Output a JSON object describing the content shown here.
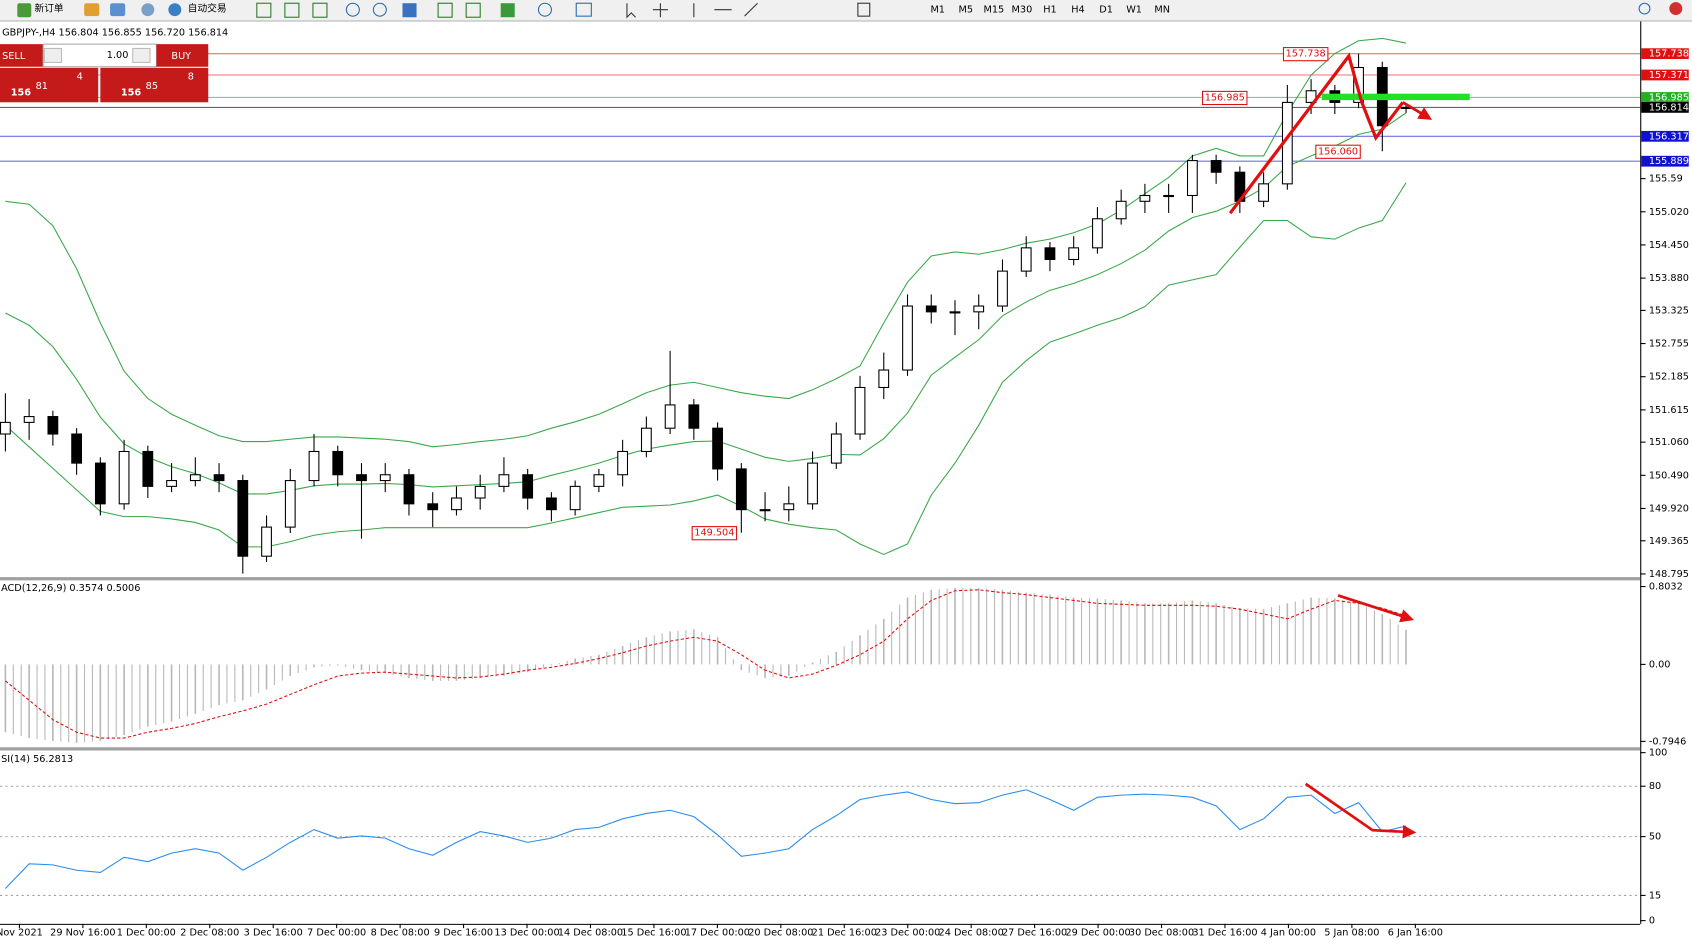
{
  "toolbar": {
    "new_order": "新订单",
    "auto_trading": "自动交易",
    "timeframes": [
      "M1",
      "M5",
      "M15",
      "M30",
      "H1",
      "H4",
      "D1",
      "W1",
      "MN"
    ]
  },
  "trade_panel": {
    "sell": "SELL",
    "buy": "BUY",
    "lots": "1.00",
    "sell_price": {
      "prefix": "156",
      "big": "81",
      "small": "4"
    },
    "buy_price": {
      "prefix": "156",
      "big": "85",
      "small": "8"
    }
  },
  "time_axis": {
    "labels": [
      "Nov 2021",
      "29 Nov 16:00",
      "1 Dec 00:00",
      "2 Dec 08:00",
      "3 Dec 16:00",
      "7 Dec 00:00",
      "8 Dec 08:00",
      "9 Dec 16:00",
      "13 Dec 00:00",
      "14 Dec 08:00",
      "15 Dec 16:00",
      "17 Dec 00:00",
      "20 Dec 08:00",
      "21 Dec 16:00",
      "23 Dec 00:00",
      "24 Dec 08:00",
      "27 Dec 16:00",
      "29 Dec 00:00",
      "30 Dec 08:00",
      "31 Dec 16:00",
      "4 Jan 00:00",
      "5 Jan 08:00",
      "6 Jan 16:00"
    ]
  },
  "chart_data": [
    {
      "type": "candlestick",
      "header": "GBPJPY-,H4  156.804 156.855 156.720 156.814",
      "ylim": [
        148.74,
        158.29
      ],
      "yticks": [
        155.59,
        {
          "value": 155.02,
          "label": "155.020"
        },
        {
          "value": 154.45,
          "label": "154.450"
        },
        {
          "value": 153.88,
          "label": "153.880"
        },
        153.325,
        152.755,
        152.185,
        151.615,
        {
          "value": 151.06,
          "label": "151.060"
        },
        {
          "value": 150.49,
          "label": "150.490"
        },
        {
          "value": 149.92,
          "label": "149.920"
        },
        149.365,
        148.795
      ],
      "open": [
        151.2,
        151.4,
        151.5,
        151.2,
        150.7,
        150.0,
        150.9,
        150.3,
        150.4,
        150.5,
        150.4,
        149.1,
        149.6,
        150.4,
        150.9,
        150.5,
        150.4,
        150.5,
        150.0,
        149.9,
        150.1,
        150.3,
        150.5,
        150.1,
        149.9,
        150.3,
        150.5,
        150.9,
        151.3,
        151.7,
        151.3,
        150.6,
        149.9,
        149.9,
        150.0,
        150.7,
        151.2,
        152.0,
        152.3,
        153.4,
        153.3,
        153.3,
        153.4,
        154.0,
        154.4,
        154.2,
        154.4,
        154.9,
        155.2,
        155.3,
        155.3,
        155.9,
        155.7,
        155.2,
        155.5,
        156.9,
        157.1,
        156.9,
        157.5,
        156.804
      ],
      "high": [
        151.9,
        151.8,
        151.6,
        151.3,
        150.8,
        151.1,
        151.0,
        150.7,
        150.8,
        150.7,
        150.5,
        149.8,
        150.6,
        151.2,
        151.0,
        150.7,
        150.7,
        150.6,
        150.2,
        150.3,
        150.5,
        150.8,
        150.6,
        150.2,
        150.4,
        150.6,
        151.1,
        151.5,
        152.63,
        151.8,
        151.4,
        150.7,
        150.2,
        150.3,
        150.9,
        151.4,
        152.2,
        152.6,
        153.6,
        153.6,
        153.5,
        153.6,
        154.2,
        154.6,
        154.5,
        154.6,
        155.1,
        155.4,
        155.5,
        155.5,
        156.0,
        156.0,
        155.8,
        155.7,
        157.2,
        157.3,
        157.2,
        157.738,
        157.6,
        156.855
      ],
      "low": [
        150.9,
        151.1,
        151.0,
        150.5,
        149.8,
        149.9,
        150.1,
        150.2,
        150.3,
        150.2,
        148.8,
        149.0,
        149.5,
        150.3,
        150.3,
        149.4,
        150.2,
        149.8,
        149.6,
        149.8,
        149.9,
        150.2,
        149.9,
        149.7,
        149.8,
        150.2,
        150.3,
        150.8,
        151.2,
        151.1,
        150.4,
        149.504,
        149.7,
        149.7,
        149.9,
        150.6,
        151.1,
        151.8,
        152.2,
        153.1,
        152.9,
        153.0,
        153.3,
        153.9,
        154.0,
        154.1,
        154.3,
        154.8,
        155.0,
        155.0,
        155.0,
        155.5,
        155.0,
        155.1,
        155.4,
        156.7,
        156.7,
        156.8,
        156.06,
        156.72
      ],
      "close": [
        151.4,
        151.5,
        151.2,
        150.7,
        150.0,
        150.9,
        150.3,
        150.4,
        150.5,
        150.4,
        149.1,
        149.6,
        150.4,
        150.9,
        150.5,
        150.4,
        150.5,
        150.0,
        149.9,
        150.1,
        150.3,
        150.5,
        150.1,
        149.9,
        150.3,
        150.5,
        150.9,
        151.3,
        151.7,
        151.3,
        150.6,
        149.9,
        149.9,
        150.0,
        150.7,
        151.2,
        152.0,
        152.3,
        153.4,
        153.3,
        153.3,
        153.4,
        154.0,
        154.4,
        154.2,
        154.4,
        154.9,
        155.2,
        155.3,
        155.3,
        155.9,
        155.7,
        155.2,
        155.5,
        156.9,
        157.1,
        156.9,
        157.5,
        156.5,
        156.814
      ],
      "bands": {
        "color": "#3aa84a",
        "upper": [
          155.2,
          155.15,
          154.78,
          154.04,
          153.11,
          152.28,
          151.81,
          151.54,
          151.35,
          151.17,
          151.07,
          151.07,
          151.11,
          151.15,
          151.15,
          151.13,
          151.11,
          151.07,
          150.98,
          151.02,
          151.07,
          151.11,
          151.17,
          151.3,
          151.41,
          151.54,
          151.72,
          151.91,
          152.04,
          152.09,
          152.0,
          151.91,
          151.85,
          151.81,
          151.96,
          152.15,
          152.37,
          153.11,
          153.81,
          154.26,
          154.33,
          154.29,
          154.37,
          154.48,
          154.55,
          154.66,
          154.81,
          155.05,
          155.33,
          155.61,
          155.98,
          156.11,
          155.98,
          155.98,
          156.72,
          157.37,
          157.74,
          157.96,
          158.0,
          157.92
        ],
        "middle": [
          153.28,
          153.07,
          152.7,
          152.14,
          151.49,
          151.03,
          150.8,
          150.64,
          150.52,
          150.36,
          150.17,
          150.17,
          150.23,
          150.31,
          150.34,
          150.34,
          150.35,
          150.33,
          150.29,
          150.31,
          150.33,
          150.35,
          150.38,
          150.49,
          150.59,
          150.7,
          150.83,
          150.94,
          151.01,
          151.07,
          151.08,
          150.94,
          150.8,
          150.73,
          150.78,
          150.85,
          150.84,
          151.12,
          151.56,
          152.21,
          152.52,
          152.82,
          153.23,
          153.47,
          153.67,
          153.79,
          153.94,
          154.13,
          154.36,
          154.69,
          154.92,
          155.03,
          155.2,
          155.43,
          155.8,
          155.98,
          156.15,
          156.35,
          156.44,
          156.72
        ],
        "lower": [
          151.35,
          150.98,
          150.61,
          150.24,
          149.87,
          149.78,
          149.78,
          149.74,
          149.68,
          149.55,
          149.26,
          149.26,
          149.35,
          149.46,
          149.52,
          149.55,
          149.59,
          149.59,
          149.59,
          149.59,
          149.59,
          149.59,
          149.59,
          149.67,
          149.76,
          149.85,
          149.94,
          149.96,
          149.98,
          150.05,
          150.15,
          149.96,
          149.74,
          149.65,
          149.59,
          149.55,
          149.31,
          149.13,
          149.31,
          150.15,
          150.7,
          151.35,
          152.09,
          152.46,
          152.78,
          152.92,
          153.07,
          153.2,
          153.39,
          153.76,
          153.85,
          153.94,
          154.41,
          154.87,
          154.87,
          154.59,
          154.55,
          154.74,
          154.87,
          155.52
        ]
      },
      "levels": [
        {
          "value": 157.738,
          "color": "#e01010"
        },
        {
          "value": 157.371,
          "color": "#e01010"
        },
        {
          "value": 156.985,
          "color": "#22b022"
        },
        {
          "value": 156.814,
          "color": "#000000"
        },
        {
          "value": 156.317,
          "color": "#1010d0"
        },
        {
          "value": 155.889,
          "color": "#1010d0"
        }
      ],
      "annotations": [
        157.738,
        156.985,
        {
          "value": 156.06,
          "label": "156.060"
        },
        149.504
      ]
    },
    {
      "type": "macd",
      "label": "ACD(12,26,9) 0.3574 0.5006",
      "ylim": [
        -0.844,
        0.856
      ],
      "yticks": [
        0.8032,
        {
          "value": 0,
          "label": "0.00"
        },
        -0.7946
      ],
      "histogram": {
        "color": "#b8b8b8",
        "values": [
          -0.7,
          -0.76,
          -0.79,
          -0.81,
          -0.79,
          -0.73,
          -0.64,
          -0.59,
          -0.51,
          -0.42,
          -0.37,
          -0.26,
          -0.12,
          -0.03,
          -0.01,
          -0.06,
          -0.09,
          -0.14,
          -0.17,
          -0.17,
          -0.14,
          -0.12,
          -0.08,
          -0.01,
          0.06,
          0.1,
          0.19,
          0.28,
          0.34,
          0.36,
          0.28,
          -0.06,
          -0.14,
          -0.12,
          0.02,
          0.13,
          0.3,
          0.47,
          0.69,
          0.77,
          0.79,
          0.79,
          0.77,
          0.74,
          0.72,
          0.69,
          0.68,
          0.66,
          0.63,
          0.63,
          0.66,
          0.63,
          0.58,
          0.57,
          0.63,
          0.69,
          0.68,
          0.63,
          0.52,
          0.3574
        ]
      },
      "signal": {
        "color": "#e01010",
        "values": [
          -0.17,
          -0.37,
          -0.57,
          -0.7,
          -0.76,
          -0.76,
          -0.7,
          -0.66,
          -0.61,
          -0.54,
          -0.48,
          -0.41,
          -0.31,
          -0.21,
          -0.12,
          -0.09,
          -0.08,
          -0.1,
          -0.12,
          -0.14,
          -0.13,
          -0.1,
          -0.06,
          -0.03,
          0.01,
          0.06,
          0.12,
          0.19,
          0.24,
          0.28,
          0.24,
          0.1,
          -0.06,
          -0.14,
          -0.1,
          -0.01,
          0.1,
          0.24,
          0.47,
          0.66,
          0.76,
          0.77,
          0.74,
          0.72,
          0.69,
          0.66,
          0.63,
          0.62,
          0.61,
          0.61,
          0.61,
          0.6,
          0.57,
          0.52,
          0.47,
          0.57,
          0.66,
          0.63,
          0.58,
          0.5006
        ]
      }
    },
    {
      "type": "line",
      "label": "SI(14) 56.2813",
      "ylim": [
        0,
        100
      ],
      "yticks": [
        100,
        80,
        50,
        15,
        0
      ],
      "color": "#2a8cf0",
      "values": [
        19.1,
        33.8,
        33.2,
        30.0,
        28.7,
        37.7,
        35.1,
        40.2,
        42.8,
        40.2,
        30.0,
        37.7,
        46.6,
        54.2,
        49.1,
        50.4,
        49.1,
        42.8,
        38.9,
        46.6,
        53.0,
        50.4,
        46.6,
        49.1,
        54.2,
        55.5,
        60.6,
        63.8,
        65.7,
        61.9,
        51.1,
        38.3,
        40.2,
        42.8,
        54.2,
        62.5,
        72.1,
        74.7,
        76.6,
        72.1,
        69.6,
        70.2,
        74.7,
        77.9,
        72.1,
        65.7,
        73.4,
        74.7,
        75.3,
        74.7,
        73.4,
        68.3,
        54.2,
        60.6,
        73.4,
        74.7,
        63.8,
        70.2,
        53.0,
        56.2813
      ]
    }
  ]
}
